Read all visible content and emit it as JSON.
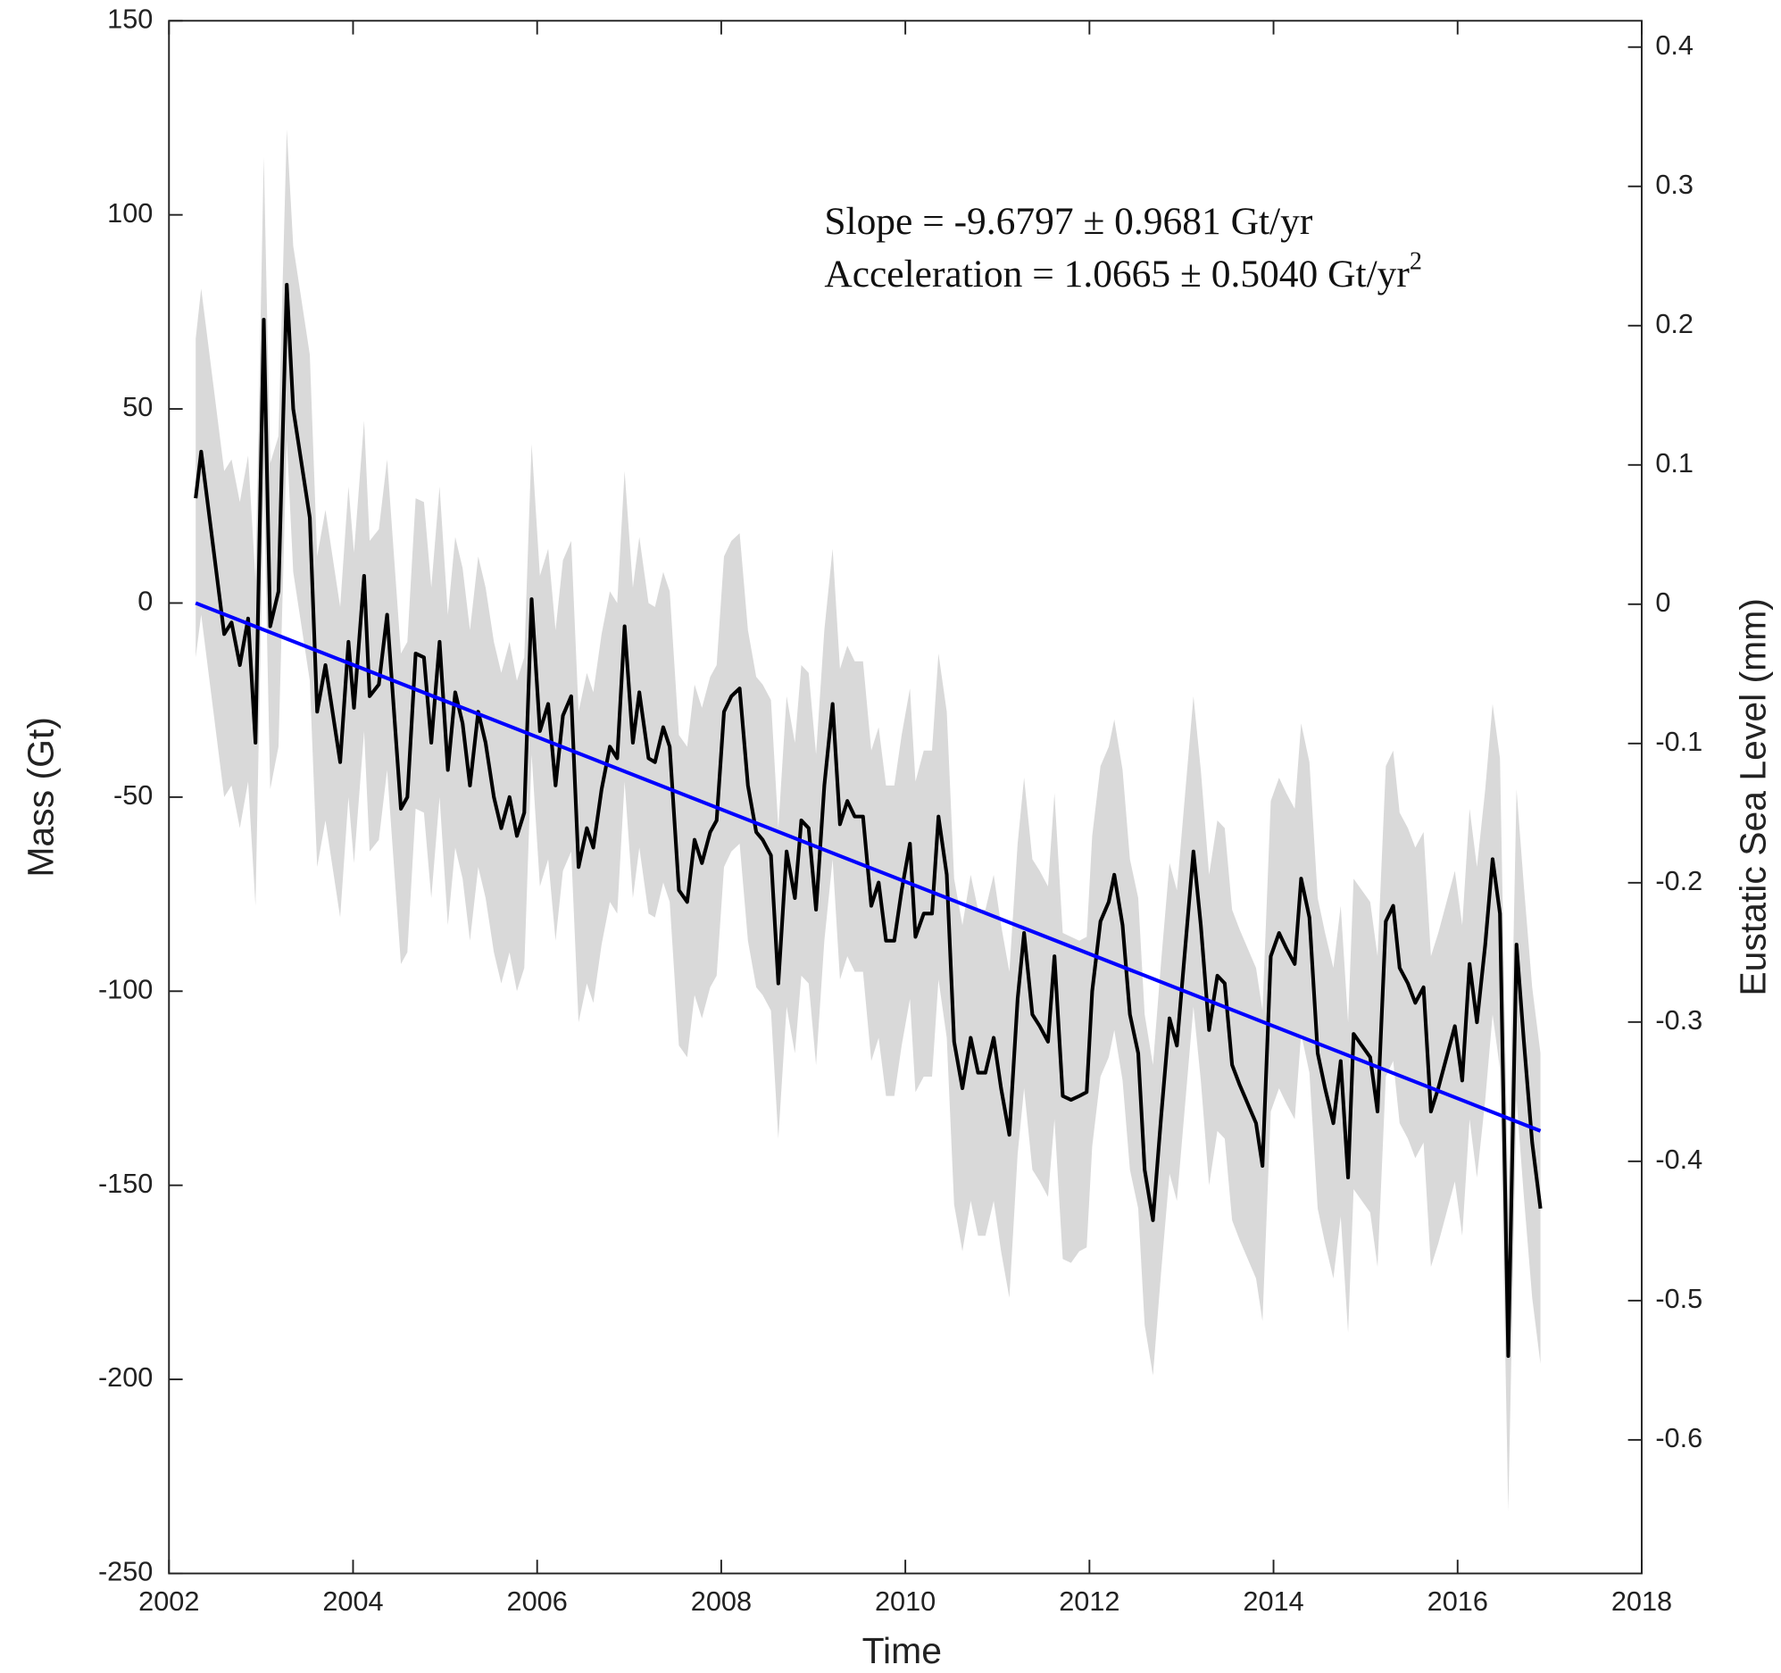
{
  "chart_data": {
    "type": "line",
    "x_label": "Time",
    "y_label": "Mass (Gt)",
    "y2_label": "Eustatic Sea Level (mm)",
    "annotations": [
      {
        "text": "Slope = -9.6797 ± 0.9681 Gt/yr"
      },
      {
        "text": "Acceleration = 1.0665 ± 0.5040 Gt/yr",
        "superscript": "2"
      }
    ],
    "xlim": [
      2002,
      2018
    ],
    "xticks": [
      2002,
      2004,
      2006,
      2008,
      2010,
      2012,
      2014,
      2016,
      2018
    ],
    "ylim": [
      -250,
      150
    ],
    "yticks": [
      -250,
      -200,
      -150,
      -100,
      -50,
      0,
      50,
      100,
      150
    ],
    "y2lim": [
      -0.6959,
      0.4189
    ],
    "y2ticks": [
      -0.6,
      -0.5,
      -0.4,
      -0.3,
      -0.2,
      -0.1,
      0,
      0.1,
      0.2,
      0.3,
      0.4
    ],
    "grid": false,
    "band_color": "#d9d9d9",
    "series": [
      {
        "color": "#000000",
        "x": [
          2002.29,
          2002.35,
          2002.6,
          2002.68,
          2002.77,
          2002.86,
          2002.94,
          2003.03,
          2003.1,
          2003.19,
          2003.28,
          2003.35,
          2003.53,
          2003.61,
          2003.7,
          2003.86,
          2003.95,
          2004.01,
          2004.12,
          2004.18,
          2004.28,
          2004.37,
          2004.52,
          2004.59,
          2004.68,
          2004.77,
          2004.85,
          2004.94,
          2005.03,
          2005.11,
          2005.19,
          2005.27,
          2005.36,
          2005.44,
          2005.53,
          2005.61,
          2005.7,
          2005.78,
          2005.86,
          2005.94,
          2006.03,
          2006.12,
          2006.2,
          2006.28,
          2006.37,
          2006.45,
          2006.54,
          2006.61,
          2006.7,
          2006.79,
          2006.87,
          2006.95,
          2007.04,
          2007.11,
          2007.21,
          2007.28,
          2007.37,
          2007.44,
          2007.54,
          2007.63,
          2007.71,
          2007.79,
          2007.88,
          2007.95,
          2008.03,
          2008.11,
          2008.2,
          2008.29,
          2008.38,
          2008.45,
          2008.54,
          2008.62,
          2008.71,
          2008.8,
          2008.87,
          2008.95,
          2009.03,
          2009.12,
          2009.21,
          2009.29,
          2009.37,
          2009.45,
          2009.54,
          2009.63,
          2009.71,
          2009.79,
          2009.88,
          2009.96,
          2010.05,
          2010.11,
          2010.2,
          2010.29,
          2010.36,
          2010.45,
          2010.53,
          2010.62,
          2010.71,
          2010.79,
          2010.87,
          2010.96,
          2011.04,
          2011.13,
          2011.22,
          2011.29,
          2011.38,
          2011.46,
          2011.55,
          2011.62,
          2011.71,
          2011.8,
          2011.89,
          2011.97,
          2012.03,
          2012.12,
          2012.21,
          2012.27,
          2012.36,
          2012.44,
          2012.53,
          2012.6,
          2012.69,
          2012.78,
          2012.87,
          2012.95,
          2013.04,
          2013.13,
          2013.21,
          2013.3,
          2013.39,
          2013.47,
          2013.55,
          2013.63,
          2013.72,
          2013.81,
          2013.88,
          2013.97,
          2014.06,
          2014.14,
          2014.23,
          2014.3,
          2014.39,
          2014.48,
          2014.56,
          2014.65,
          2014.73,
          2014.81,
          2014.87,
          2014.96,
          2015.05,
          2015.13,
          2015.22,
          2015.3,
          2015.37,
          2015.46,
          2015.54,
          2015.63,
          2015.71,
          2015.79,
          2015.88,
          2015.97,
          2016.05,
          2016.13,
          2016.21,
          2016.3,
          2016.38,
          2016.46,
          2016.55,
          2016.64,
          2016.72,
          2016.81,
          2016.9
        ],
        "values": [
          27,
          39,
          -8,
          -5,
          -16,
          -4,
          -36,
          73,
          -6,
          3,
          82,
          50,
          22,
          -28,
          -16,
          -41,
          -10,
          -27,
          7,
          -24,
          -21,
          -3,
          -53,
          -50,
          -13,
          -14,
          -36,
          -10,
          -43,
          -23,
          -31,
          -47,
          -28,
          -36,
          -50,
          -58,
          -50,
          -60,
          -54,
          1,
          -33,
          -26,
          -47,
          -29,
          -24,
          -68,
          -58,
          -63,
          -48,
          -37,
          -40,
          -6,
          -36,
          -23,
          -40,
          -41,
          -32,
          -37,
          -74,
          -77,
          -61,
          -67,
          -59,
          -56,
          -28,
          -24,
          -22,
          -47,
          -59,
          -61,
          -65,
          -98,
          -64,
          -76,
          -56,
          -58,
          -79,
          -47,
          -26,
          -57,
          -51,
          -55,
          -55,
          -78,
          -72,
          -87,
          -87,
          -74,
          -62,
          -86,
          -80,
          -80,
          -55,
          -70,
          -113,
          -125,
          -112,
          -121,
          -121,
          -112,
          -125,
          -137,
          -102,
          -85,
          -106,
          -109,
          -113,
          -91,
          -127,
          -128,
          -127,
          -126,
          -100,
          -82,
          -77,
          -70,
          -83,
          -106,
          -116,
          -146,
          -159,
          -132,
          -107,
          -114,
          -89,
          -64,
          -83,
          -110,
          -96,
          -98,
          -119,
          -124,
          -129,
          -134,
          -145,
          -91,
          -85,
          -89,
          -93,
          -71,
          -81,
          -116,
          -125,
          -134,
          -118,
          -148,
          -111,
          -114,
          -117,
          -131,
          -82,
          -78,
          -94,
          -98,
          -103,
          -99,
          -131,
          -125,
          -117,
          -109,
          -123,
          -93,
          -108,
          -88,
          -66,
          -80,
          -194,
          -88,
          -113,
          -139,
          -156
        ],
        "errors": [
          41,
          42,
          42,
          42,
          42,
          42,
          42,
          42,
          42,
          40,
          40,
          42,
          42,
          40,
          40,
          40,
          40,
          40,
          40,
          40,
          40,
          40,
          40,
          40,
          40,
          40,
          40,
          40,
          40,
          40,
          40,
          40,
          40,
          40,
          40,
          40,
          40,
          40,
          40,
          40,
          40,
          40,
          40,
          40,
          40,
          40,
          40,
          40,
          40,
          40,
          40,
          40,
          40,
          40,
          40,
          40,
          40,
          40,
          40,
          40,
          40,
          40,
          40,
          40,
          40,
          40,
          40,
          40,
          40,
          40,
          40,
          40,
          40,
          40,
          40,
          40,
          40,
          40,
          40,
          40,
          40,
          40,
          40,
          40,
          40,
          40,
          40,
          40,
          40,
          40,
          42,
          42,
          42,
          42,
          42,
          42,
          42,
          42,
          42,
          42,
          42,
          42,
          40,
          40,
          40,
          40,
          40,
          42,
          42,
          42,
          40,
          40,
          40,
          40,
          40,
          40,
          40,
          40,
          40,
          40,
          40,
          40,
          40,
          40,
          40,
          40,
          40,
          40,
          40,
          40,
          40,
          40,
          40,
          40,
          40,
          40,
          40,
          40,
          40,
          40,
          40,
          40,
          40,
          40,
          40,
          40,
          40,
          40,
          40,
          40,
          40,
          40,
          40,
          40,
          40,
          40,
          40,
          40,
          40,
          40,
          40,
          40,
          40,
          40,
          40,
          40,
          40,
          40,
          40,
          40,
          40
        ]
      },
      {
        "color": "#0000ff",
        "x": [
          2002.29,
          2016.9
        ],
        "values": [
          0,
          -136
        ]
      }
    ]
  }
}
